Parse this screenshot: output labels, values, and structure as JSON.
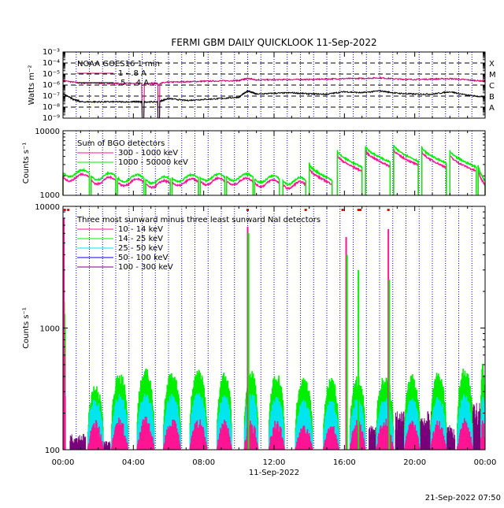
{
  "title": "FERMI GBM DAILY QUICKLOOK   11-Sep-2022",
  "generated": "21-Sep-2022 07:50",
  "x_axis": {
    "date_label": "11-Sep-2022",
    "tick_labels": [
      "00:00",
      "04:00",
      "08:00",
      "12:00",
      "16:00",
      "20:00",
      "00:00"
    ],
    "range_hours": [
      0,
      24
    ]
  },
  "colors": {
    "axis": "#000000",
    "dotted_grid": "#0000cc",
    "dashed_grid": "#000000",
    "goes_long": "#c8006e",
    "goes_short": "#000000",
    "bgo_low": "#ff1493",
    "bgo_high": "#00ee00",
    "nai_10_14": "#ff1493",
    "nai_14_25": "#00ee00",
    "nai_25_50": "#00e5ee",
    "nai_50_100": "#0000ee",
    "nai_100_300": "#7a007a",
    "marker": "#ee0000"
  },
  "chart_data": [
    {
      "type": "line",
      "panel": "goes",
      "ylabel": "Watts m⁻²",
      "yscale": "log",
      "ylim": [
        1e-09,
        0.001
      ],
      "ytick_labels": [
        "10⁻³",
        "10⁻⁴",
        "10⁻⁵",
        "10⁻⁶",
        "10⁻⁷",
        "10⁻⁸",
        "10⁻⁹"
      ],
      "right_labels": [
        "X",
        "M",
        "C",
        "B",
        "A"
      ],
      "legend_title": "NOAA GOES16 1 min",
      "series": [
        {
          "name": "1 - .8 A",
          "color": "#c8006e",
          "x": [
            0,
            1,
            2,
            3,
            4,
            5,
            5.4,
            6,
            7,
            8,
            9,
            10,
            10.5,
            11,
            12,
            13,
            14,
            15,
            16,
            17,
            18,
            19,
            20,
            21,
            22,
            23,
            24
          ],
          "values": [
            2.5e-06,
            1.5e-06,
            1.5e-06,
            1.4e-06,
            1.4e-06,
            1.4e-06,
            1.4e-06,
            1.8e-06,
            2e-06,
            2.2e-06,
            2.4e-06,
            2.6e-06,
            4e-06,
            3e-06,
            3e-06,
            3.2e-06,
            3.2e-06,
            3.5e-06,
            3.8e-06,
            4e-06,
            4.5e-06,
            3.5e-06,
            3.2e-06,
            3.5e-06,
            3.8e-06,
            3e-06,
            2.2e-06
          ]
        },
        {
          "name": ".5 - .4 A",
          "color": "#000000",
          "x": [
            0,
            0.5,
            1,
            2,
            3,
            4,
            4.5,
            5.4,
            6,
            7,
            8,
            9,
            10,
            10.5,
            11,
            12,
            13,
            14,
            15,
            16,
            17,
            18,
            19,
            20,
            21,
            22,
            23,
            24
          ],
          "values": [
            1.6e-07,
            6e-08,
            3e-08,
            3e-08,
            3e-08,
            3e-08,
            3e-08,
            3e-08,
            6e-08,
            4e-08,
            5e-08,
            6e-08,
            8e-08,
            3e-07,
            1.5e-07,
            1.8e-07,
            2e-07,
            1.6e-07,
            1.5e-07,
            2.5e-07,
            2e-07,
            3e-07,
            1.8e-07,
            1.5e-07,
            1.5e-07,
            2.5e-07,
            1.2e-07,
            8e-08
          ]
        }
      ],
      "data_gaps_hours": [
        [
          4.5,
          4.6
        ],
        [
          5.4,
          5.5
        ]
      ]
    },
    {
      "type": "line",
      "panel": "bgo",
      "ylabel": "Counts s⁻¹",
      "yscale": "log",
      "ylim": [
        1000,
        10000
      ],
      "ytick_labels": [
        "10000",
        "1000"
      ],
      "legend_title": "Sum of BGO detectors",
      "series": [
        {
          "name": "300 - 1000 keV",
          "color": "#ff1493",
          "baseline": 1500,
          "step": 1,
          "amp": 1.0
        },
        {
          "name": "1000 - 50000 keV",
          "color": "#00ee00",
          "baseline": 1750,
          "step": 1.1,
          "amp": 1.0
        }
      ],
      "orbits": [
        {
          "start": 0.0,
          "end": 1.5,
          "peak": 1900
        },
        {
          "start": 1.6,
          "end": 3.0,
          "peak": 1700
        },
        {
          "start": 3.1,
          "end": 4.6,
          "peak": 1600
        },
        {
          "start": 4.7,
          "end": 6.1,
          "peak": 1500
        },
        {
          "start": 6.2,
          "end": 7.7,
          "peak": 1600
        },
        {
          "start": 7.8,
          "end": 9.2,
          "peak": 1650
        },
        {
          "start": 9.3,
          "end": 10.8,
          "peak": 1650
        },
        {
          "start": 10.9,
          "end": 12.3,
          "peak": 1550
        },
        {
          "start": 12.5,
          "end": 13.8,
          "peak": 1450
        },
        {
          "start": 14.0,
          "end": 15.3,
          "peak": 2700
        },
        {
          "start": 15.6,
          "end": 17.0,
          "peak": 4300
        },
        {
          "start": 17.2,
          "end": 18.6,
          "peak": 5100
        },
        {
          "start": 18.8,
          "end": 20.2,
          "peak": 5300
        },
        {
          "start": 20.4,
          "end": 21.8,
          "peak": 4900
        },
        {
          "start": 22.0,
          "end": 23.5,
          "peak": 4300
        },
        {
          "start": 23.6,
          "end": 24.0,
          "peak": 2600
        }
      ]
    },
    {
      "type": "area",
      "panel": "nai",
      "ylabel": "Counts s⁻¹",
      "yscale": "log",
      "ylim": [
        100,
        10000
      ],
      "ytick_labels": [
        "10000",
        "1000",
        "100"
      ],
      "legend_title": "Three most sunward minus three least sunward NaI detectors",
      "series": [
        {
          "name": "10 - 14 keV",
          "color": "#ff1493"
        },
        {
          "name": "14 - 25 keV",
          "color": "#00ee00"
        },
        {
          "name": "25 - 50 keV",
          "color": "#00e5ee"
        },
        {
          "name": "50 - 100 keV",
          "color": "#0000ee"
        },
        {
          "name": "100 - 300 keV",
          "color": "#7a007a"
        }
      ],
      "orbits": [
        {
          "start": 0.0,
          "end": 0.15,
          "green": 1800,
          "cyan": 400,
          "pink": 700
        },
        {
          "start": 1.4,
          "end": 2.3,
          "green": 330,
          "cyan": 260,
          "pink": 170
        },
        {
          "start": 2.75,
          "end": 3.7,
          "green": 420,
          "cyan": 280,
          "pink": 180
        },
        {
          "start": 4.2,
          "end": 5.2,
          "green": 450,
          "cyan": 290,
          "pink": 180
        },
        {
          "start": 5.7,
          "end": 6.7,
          "green": 430,
          "cyan": 280,
          "pink": 180
        },
        {
          "start": 7.2,
          "end": 8.2,
          "green": 440,
          "cyan": 290,
          "pink": 175
        },
        {
          "start": 8.75,
          "end": 9.6,
          "green": 420,
          "cyan": 280,
          "pink": 170
        },
        {
          "start": 10.3,
          "end": 11.1,
          "green": 450,
          "cyan": 300,
          "pink": 175
        },
        {
          "start": 11.7,
          "end": 12.6,
          "green": 420,
          "cyan": 270,
          "pink": 170
        },
        {
          "start": 13.2,
          "end": 14.2,
          "green": 380,
          "cyan": 250,
          "pink": 160
        },
        {
          "start": 14.8,
          "end": 15.7,
          "green": 380,
          "cyan": 250,
          "pink": 160
        },
        {
          "start": 16.3,
          "end": 17.2,
          "green": 390,
          "cyan": 260,
          "pink": 170
        },
        {
          "start": 17.8,
          "end": 18.8,
          "green": 400,
          "cyan": 260,
          "pink": 175
        },
        {
          "start": 19.4,
          "end": 20.3,
          "green": 410,
          "cyan": 260,
          "pink": 170
        },
        {
          "start": 20.9,
          "end": 21.8,
          "green": 430,
          "cyan": 270,
          "pink": 170
        },
        {
          "start": 22.4,
          "end": 23.3,
          "green": 460,
          "cyan": 280,
          "pink": 175
        },
        {
          "start": 23.75,
          "end": 24.0,
          "green": 500,
          "cyan": 300,
          "pink": 175
        }
      ],
      "flares": [
        {
          "time": 0.05,
          "peak": 8000,
          "color": "#ff1493"
        },
        {
          "time": 10.5,
          "peak": 6800,
          "color": "#ff1493"
        },
        {
          "time": 10.55,
          "peak": 6000,
          "color": "#00ee00"
        },
        {
          "time": 16.1,
          "peak": 5600,
          "color": "#ff1493"
        },
        {
          "time": 16.15,
          "peak": 4000,
          "color": "#00ee00"
        },
        {
          "time": 16.8,
          "peak": 3000,
          "color": "#00ee00"
        },
        {
          "time": 18.5,
          "peak": 6500,
          "color": "#ff1493"
        },
        {
          "time": 18.55,
          "peak": 2500,
          "color": "#00ee00"
        }
      ],
      "hard_xray_background": [
        {
          "start": 0.4,
          "end": 1.3,
          "level": 130
        },
        {
          "start": 2.1,
          "end": 2.7,
          "level": 115
        },
        {
          "start": 17.4,
          "end": 18.3,
          "level": 150
        },
        {
          "start": 18.9,
          "end": 21.0,
          "level": 190
        },
        {
          "start": 21.2,
          "end": 22.3,
          "level": 150
        },
        {
          "start": 22.8,
          "end": 24.0,
          "level": 220
        }
      ],
      "markers_hours": [
        0.1,
        0.3,
        10.5,
        13.8,
        15.9,
        16.8,
        16.9,
        18.5
      ]
    }
  ]
}
